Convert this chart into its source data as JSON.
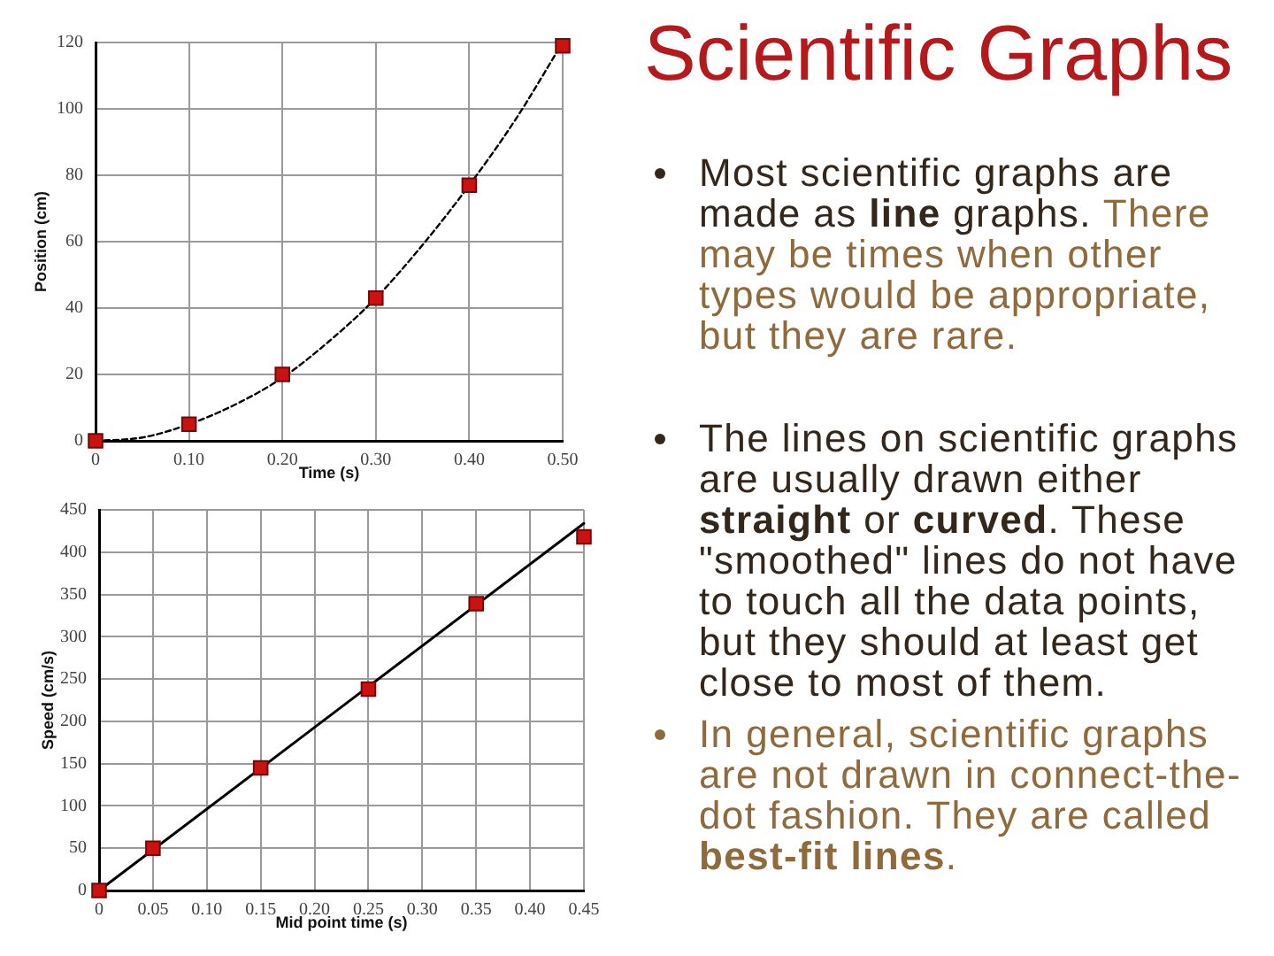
{
  "chart_data": [
    {
      "type": "scatter",
      "xlabel": "Time (s)",
      "ylabel": "Position (cm)",
      "xlim": [
        0,
        0.5
      ],
      "ylim": [
        0,
        120
      ],
      "xticks": [
        0,
        {
          "value": 0.1,
          "label": "0.10"
        },
        {
          "value": 0.2,
          "label": "0.20"
        },
        {
          "value": 0.3,
          "label": "0.30"
        },
        {
          "value": 0.4,
          "label": "0.40"
        },
        {
          "value": 0.5,
          "label": "0.50"
        }
      ],
      "yticks": [
        0,
        20,
        40,
        60,
        80,
        100,
        120
      ],
      "grid": true,
      "series": [
        {
          "type": "scatter",
          "color": "#cc1111",
          "marker": "square",
          "x": [
            0,
            0.1,
            0.2,
            0.3,
            0.4,
            0.5
          ],
          "values": [
            0,
            5,
            20,
            43,
            77,
            119
          ]
        },
        {
          "type": "line",
          "color": "#000000",
          "marker": "none",
          "line_style": "dashed",
          "x": [
            0,
            0.05,
            0.1,
            0.15,
            0.2,
            0.25,
            0.3,
            0.35,
            0.4,
            0.45,
            0.5
          ],
          "values": [
            0,
            1,
            5,
            11,
            19,
            30,
            43,
            59,
            77,
            97,
            120
          ]
        }
      ]
    },
    {
      "type": "scatter",
      "xlabel": "Mid point time (s)",
      "ylabel": "Speed (cm/s)",
      "xlim": [
        0,
        0.45
      ],
      "ylim": [
        0,
        450
      ],
      "xticks": [
        0,
        {
          "value": 0.05,
          "label": "0.05"
        },
        {
          "value": 0.1,
          "label": "0.10"
        },
        {
          "value": 0.15,
          "label": "0.15"
        },
        {
          "value": 0.2,
          "label": "0.20"
        },
        {
          "value": 0.25,
          "label": "0.25"
        },
        {
          "value": 0.3,
          "label": "0.30"
        },
        {
          "value": 0.35,
          "label": "0.35"
        },
        {
          "value": 0.4,
          "label": "0.40"
        },
        {
          "value": 0.45,
          "label": "0.45"
        }
      ],
      "yticks": [
        0,
        50,
        100,
        150,
        200,
        250,
        300,
        350,
        400,
        450
      ],
      "grid": true,
      "series": [
        {
          "type": "scatter",
          "color": "#cc1111",
          "marker": "square",
          "x": [
            0,
            0.05,
            0.15,
            0.25,
            0.35,
            0.45
          ],
          "values": [
            0,
            50,
            145,
            238,
            339,
            418
          ]
        },
        {
          "type": "line",
          "color": "#000000",
          "marker": "none",
          "line_style": "solid",
          "x": [
            0,
            0.45
          ],
          "values": [
            0,
            434
          ]
        }
      ]
    },
    {
      "type": "other",
      "title": "Scientific Graphs",
      "annotations": [
        "Most scientific graphs are made as line graphs. There may be times when other types would be appropriate, but they are rare.",
        "The lines on scientific graphs are usually drawn either straight or curved. These \"smoothed\" lines do not have to touch all the data points, but they should at least get close to most of them.",
        "In general, scientific graphs are not drawn in connect-the-dot fashion. They are called best-fit lines."
      ]
    }
  ]
}
